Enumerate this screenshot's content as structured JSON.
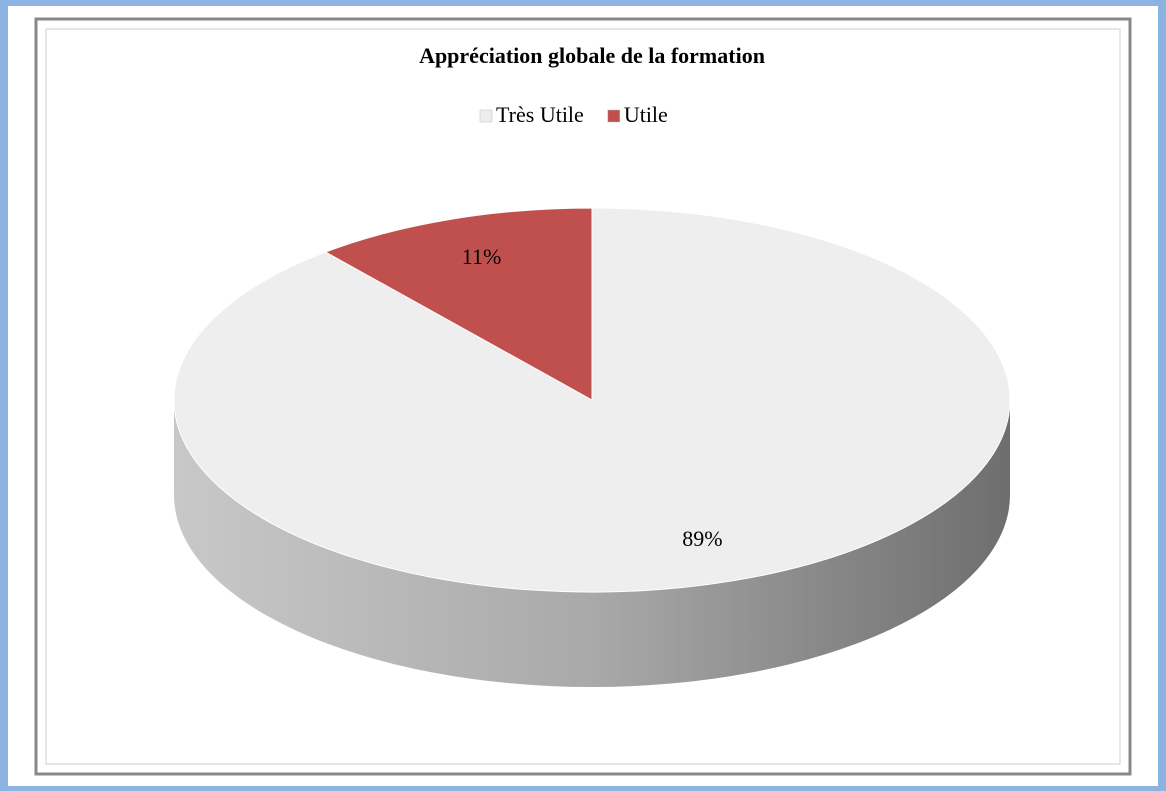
{
  "chart_data": {
    "type": "pie3d",
    "title": "Appréciation globale de la formation",
    "categories": [
      "Très Utile",
      "Utile"
    ],
    "values": [
      89,
      11
    ],
    "value_labels": [
      "89%",
      "11%"
    ],
    "colors": [
      "#eeeeee",
      "#c0504d"
    ],
    "legend": "top"
  }
}
